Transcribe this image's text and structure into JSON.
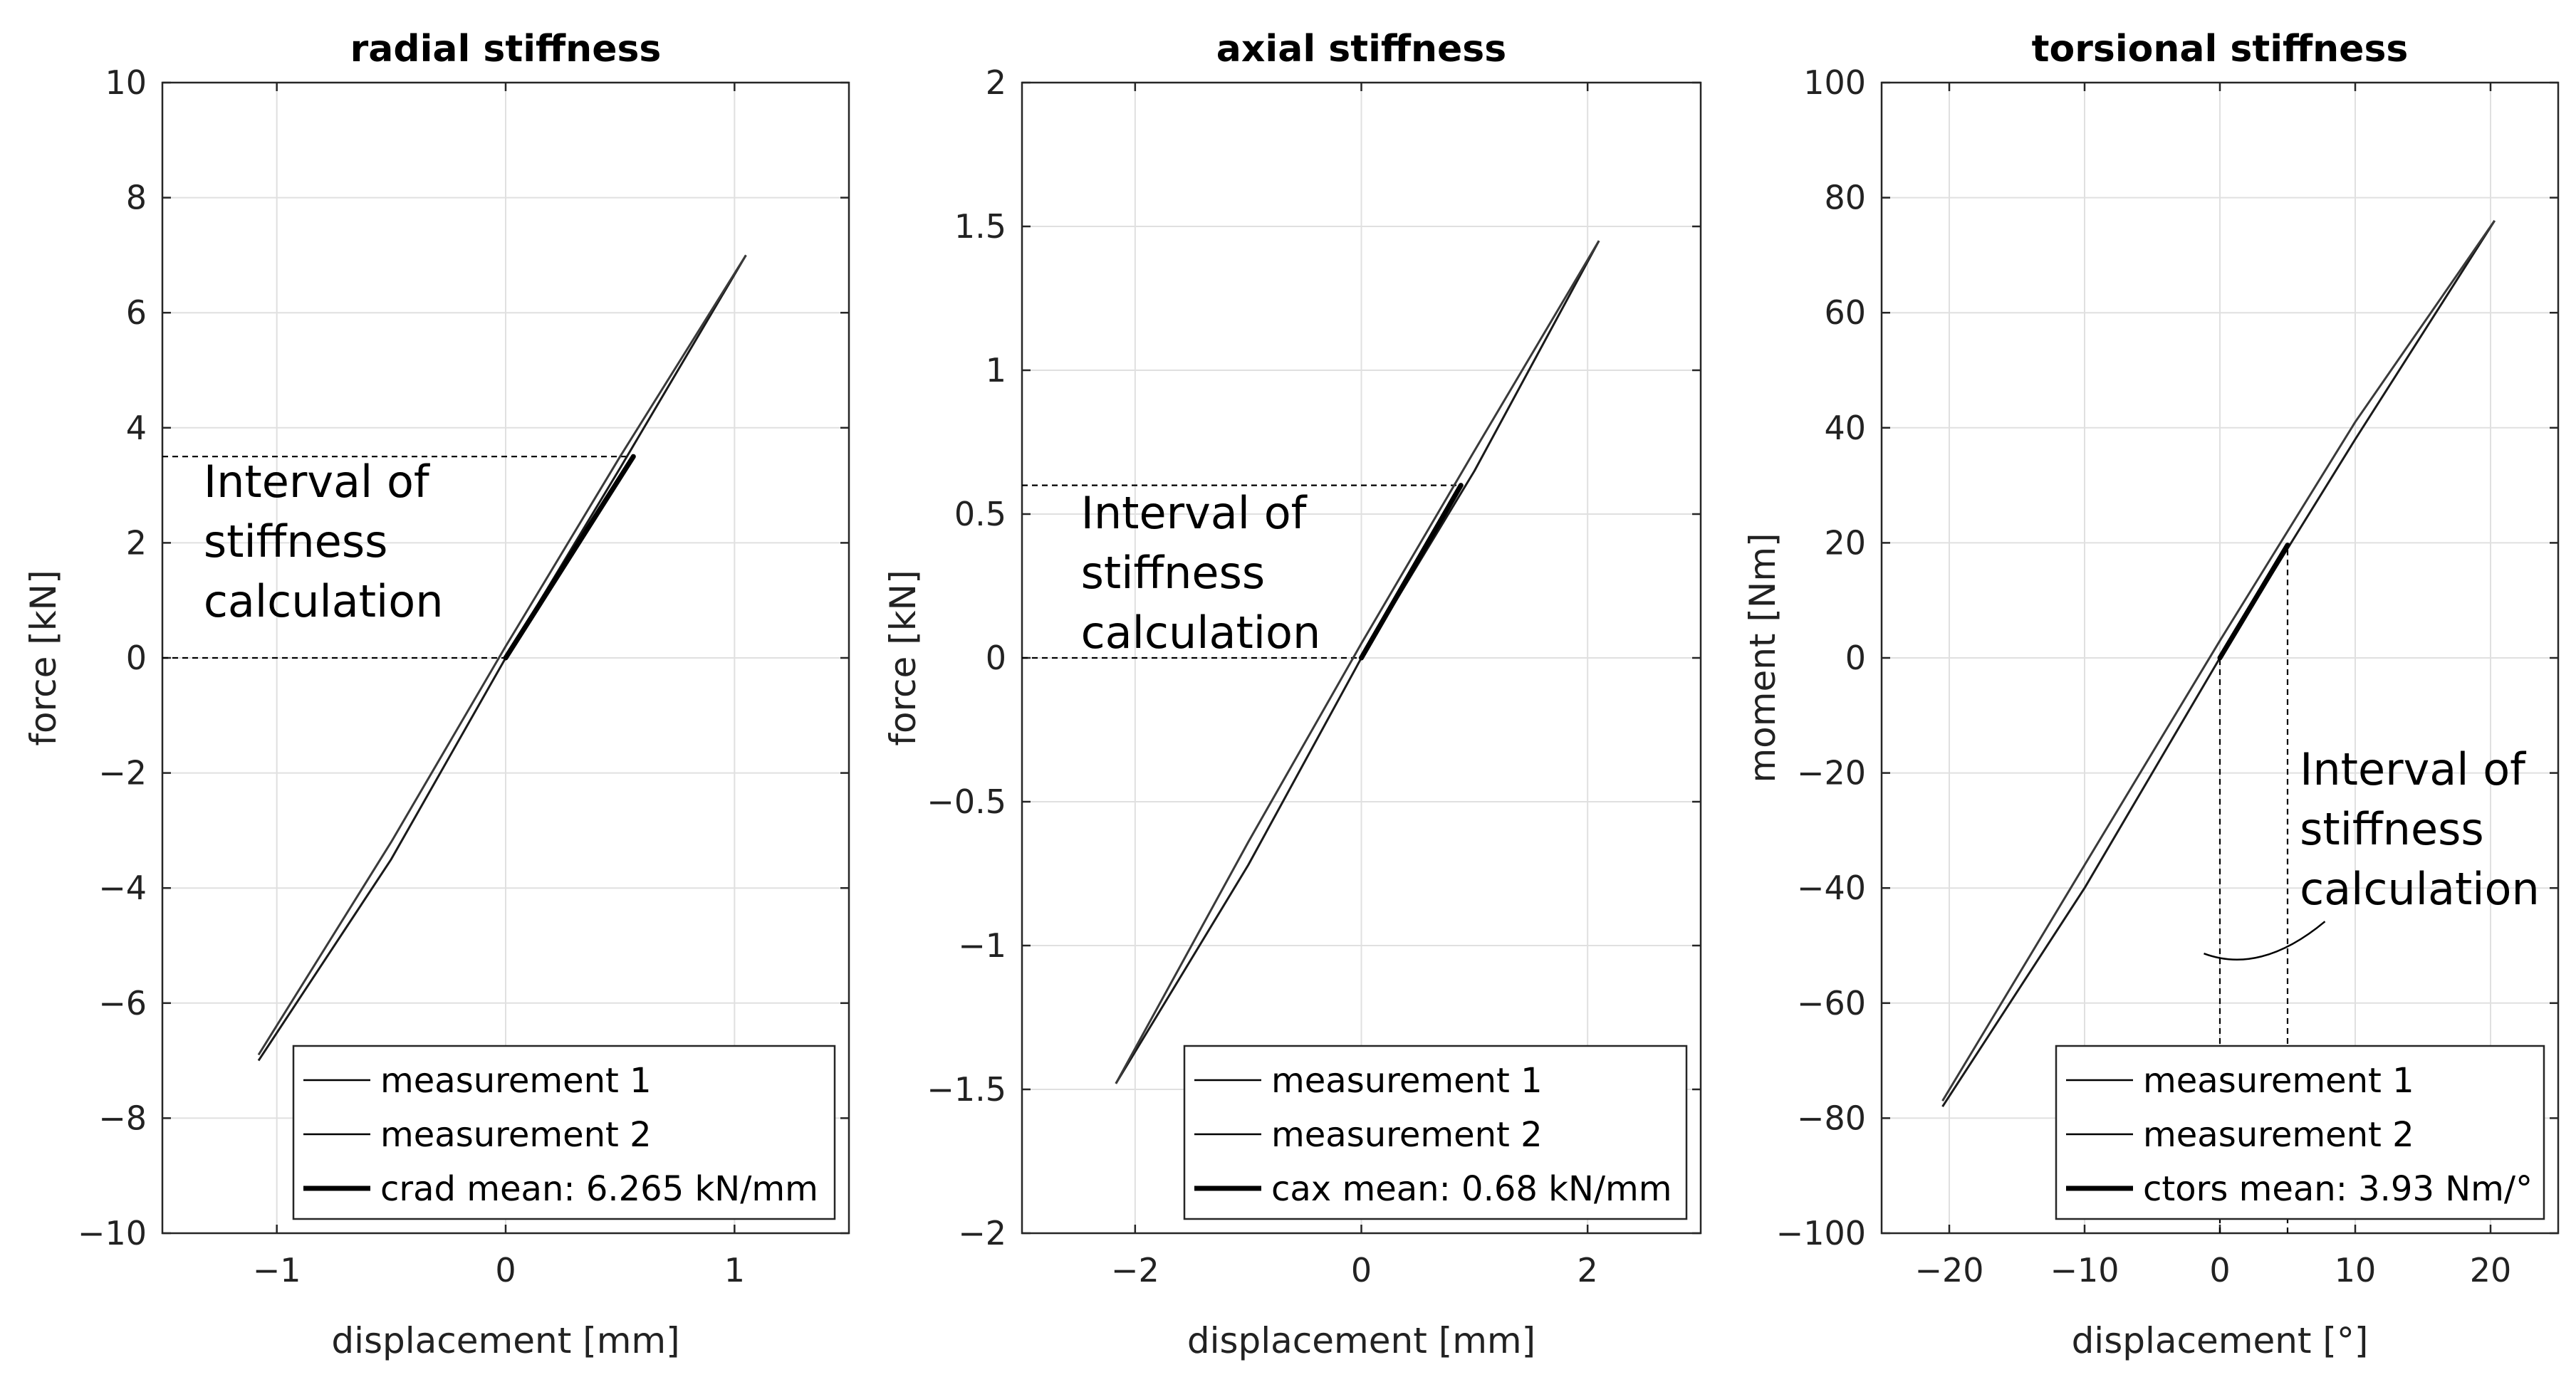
{
  "chart_data": [
    {
      "type": "line",
      "title": "radial stiffness",
      "xlabel": "displacement [mm]",
      "ylabel": "force [kN]",
      "xlim": [
        -1.5,
        1.5
      ],
      "ylim": [
        -10,
        10
      ],
      "xticks": [
        -1,
        0,
        1
      ],
      "yticks": [
        -10,
        -8,
        -6,
        -4,
        -2,
        0,
        2,
        4,
        6,
        8,
        10
      ],
      "xtick_labels": [
        "−1",
        "0",
        "1"
      ],
      "ytick_labels": [
        "−10",
        "−8",
        "−6",
        "−4",
        "−2",
        "0",
        "2",
        "4",
        "6",
        "8",
        "10"
      ],
      "grid": true,
      "series": [
        {
          "name": "measurement 1",
          "x": [
            -1.08,
            -0.5,
            0.0,
            0.5,
            1.05
          ],
          "y": [
            -7.0,
            -3.5,
            0.0,
            3.3,
            7.0
          ]
        },
        {
          "name": "measurement 2",
          "x": [
            -1.08,
            -0.5,
            0.0,
            0.5,
            1.05
          ],
          "y": [
            -6.9,
            -3.2,
            0.2,
            3.5,
            7.0
          ]
        },
        {
          "name": "crad mean: 6.265 kN/mm",
          "x": [
            0.0,
            0.558
          ],
          "y": [
            0.0,
            3.5
          ]
        }
      ],
      "interval": {
        "orientation": "horizontal",
        "values": [
          0,
          3.5
        ]
      },
      "annotation": {
        "lines": [
          "Interval of",
          "stiffness",
          "calculation"
        ],
        "x": -1.32,
        "y": 2.8
      },
      "legend_position": "bottom-right"
    },
    {
      "type": "line",
      "title": "axial stiffness",
      "xlabel": "displacement [mm]",
      "ylabel": "force [kN]",
      "xlim": [
        -3,
        3
      ],
      "ylim": [
        -2,
        2
      ],
      "xticks": [
        -2,
        0,
        2
      ],
      "yticks": [
        -2,
        -1.5,
        -1,
        -0.5,
        0,
        0.5,
        1,
        1.5,
        2
      ],
      "xtick_labels": [
        "−2",
        "0",
        "2"
      ],
      "ytick_labels": [
        "−2",
        "−1.5",
        "−1",
        "−0.5",
        "0",
        "0.5",
        "1",
        "1.5",
        "2"
      ],
      "grid": true,
      "series": [
        {
          "name": "measurement 1",
          "x": [
            -2.17,
            -1.0,
            0.0,
            1.0,
            2.1
          ],
          "y": [
            -1.48,
            -0.72,
            0.0,
            0.65,
            1.45
          ]
        },
        {
          "name": "measurement 2",
          "x": [
            -2.17,
            -1.0,
            0.0,
            1.0,
            2.1
          ],
          "y": [
            -1.48,
            -0.64,
            0.05,
            0.72,
            1.45
          ]
        },
        {
          "name": "cax mean: 0.68 kN/mm",
          "x": [
            0.0,
            0.88
          ],
          "y": [
            0.0,
            0.6
          ]
        }
      ],
      "interval": {
        "orientation": "horizontal",
        "values": [
          0,
          0.6
        ]
      },
      "annotation": {
        "lines": [
          "Interval of",
          "stiffness",
          "calculation"
        ],
        "x": -2.48,
        "y": 0.45
      },
      "legend_position": "bottom-right"
    },
    {
      "type": "line",
      "title": "torsional stiffness",
      "xlabel": "displacement [°]",
      "ylabel": "moment [Nm]",
      "xlim": [
        -25,
        25
      ],
      "ylim": [
        -100,
        100
      ],
      "xticks": [
        -20,
        -10,
        0,
        10,
        20
      ],
      "yticks": [
        -100,
        -80,
        -60,
        -40,
        -20,
        0,
        20,
        40,
        60,
        80,
        100
      ],
      "xtick_labels": [
        "−20",
        "−10",
        "0",
        "10",
        "20"
      ],
      "ytick_labels": [
        "−100",
        "−80",
        "−60",
        "−40",
        "−20",
        "0",
        "20",
        "40",
        "60",
        "80",
        "100"
      ],
      "grid": true,
      "series": [
        {
          "name": "measurement 1",
          "x": [
            -20.5,
            -10.0,
            0.0,
            10.0,
            20.3
          ],
          "y": [
            -78.0,
            -40.0,
            0.0,
            38.0,
            76.0
          ]
        },
        {
          "name": "measurement 2",
          "x": [
            -20.5,
            -10.0,
            0.0,
            10.0,
            20.3
          ],
          "y": [
            -77.0,
            -36.0,
            3.0,
            41.0,
            76.0
          ]
        },
        {
          "name": "ctors mean: 3.93 Nm/°",
          "x": [
            0.0,
            5.0
          ],
          "y": [
            0.0,
            19.6
          ]
        }
      ],
      "interval": {
        "orientation": "vertical",
        "values": [
          0,
          5
        ]
      },
      "annotation": {
        "lines": [
          "Interval of",
          "stiffness",
          "calculation"
        ],
        "x": 5.9,
        "y": -22
      },
      "legend_position": "bottom-right"
    }
  ]
}
